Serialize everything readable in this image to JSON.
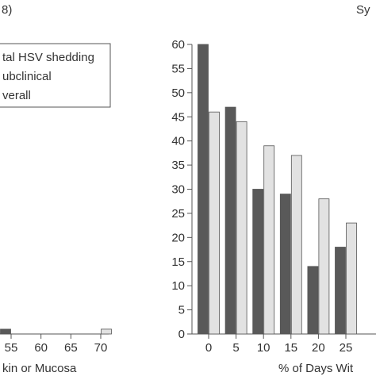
{
  "panel_label_left": "8)",
  "panel_label_right": "Sy",
  "legend": {
    "items": [
      {
        "label": "tal HSV shedding"
      },
      {
        "label": "ubclinical"
      },
      {
        "label": "verall"
      }
    ]
  },
  "colors": {
    "dark": "#595959",
    "light": "#e2e2e2",
    "axis": "#555555",
    "text": "#333333"
  },
  "chart_data": [
    {
      "type": "bar",
      "xlabel": "kin or Mucosa",
      "ylabel": "",
      "x_ticks": [
        "55",
        "60",
        "65",
        "70"
      ],
      "ylim": [
        0,
        60
      ],
      "series": [
        {
          "name": "",
          "points": [
            {
              "x": 55,
              "y": 1
            }
          ]
        },
        {
          "name": "",
          "points": [
            {
              "x": 70,
              "y": 1
            }
          ]
        }
      ]
    },
    {
      "type": "bar",
      "xlabel": "% of Days Wit",
      "ylabel": "",
      "ylim": [
        0,
        60
      ],
      "y_ticks": [
        0,
        5,
        10,
        15,
        20,
        25,
        30,
        35,
        40,
        45,
        50,
        55,
        60
      ],
      "categories": [
        "0",
        "5",
        "10",
        "15",
        "20",
        "25"
      ],
      "series": [
        {
          "name": "",
          "values": [
            60,
            47,
            30,
            29,
            14,
            18
          ]
        },
        {
          "name": "",
          "values": [
            46,
            44,
            39,
            37,
            28,
            23
          ]
        }
      ],
      "grid": false
    }
  ]
}
